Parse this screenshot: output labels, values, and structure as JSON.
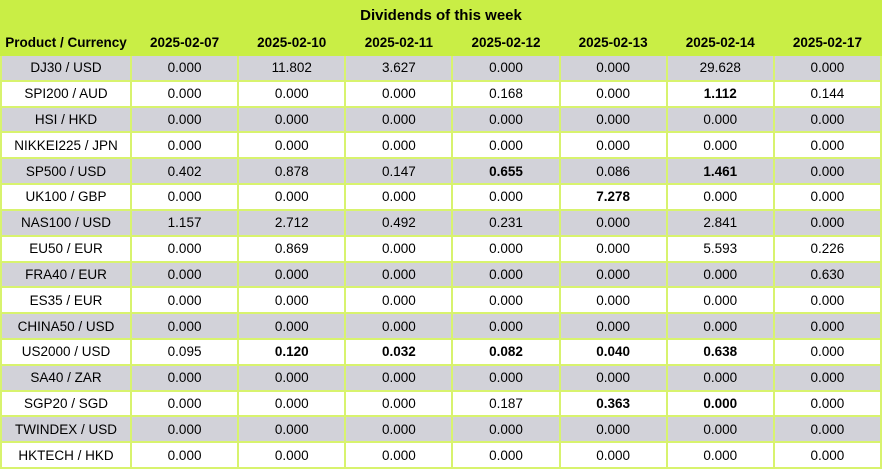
{
  "colors": {
    "header_bg": "#c9ee45",
    "border": "#d8f36e",
    "row_gray": "#d2d2d9",
    "row_white": "#ffffff",
    "text": "#000000"
  },
  "chart_data": {
    "type": "table",
    "title": "Dividends of this week",
    "columns": [
      "Product / Currency",
      "2025-02-07",
      "2025-02-10",
      "2025-02-11",
      "2025-02-12",
      "2025-02-13",
      "2025-02-14",
      "2025-02-17"
    ],
    "rows": [
      {
        "product": "DJ30 / USD",
        "values": [
          "0.000",
          "11.802",
          "3.627",
          "0.000",
          "0.000",
          "29.628",
          "0.000"
        ],
        "bold": [
          0,
          0,
          0,
          0,
          0,
          0,
          0
        ]
      },
      {
        "product": "SPI200 / AUD",
        "values": [
          "0.000",
          "0.000",
          "0.000",
          "0.168",
          "0.000",
          "1.112",
          "0.144"
        ],
        "bold": [
          0,
          0,
          0,
          0,
          0,
          1,
          0
        ]
      },
      {
        "product": "HSI / HKD",
        "values": [
          "0.000",
          "0.000",
          "0.000",
          "0.000",
          "0.000",
          "0.000",
          "0.000"
        ],
        "bold": [
          0,
          0,
          0,
          0,
          0,
          0,
          0
        ]
      },
      {
        "product": "NIKKEI225 / JPN",
        "values": [
          "0.000",
          "0.000",
          "0.000",
          "0.000",
          "0.000",
          "0.000",
          "0.000"
        ],
        "bold": [
          0,
          0,
          0,
          0,
          0,
          0,
          0
        ]
      },
      {
        "product": "SP500 / USD",
        "values": [
          "0.402",
          "0.878",
          "0.147",
          "0.655",
          "0.086",
          "1.461",
          "0.000"
        ],
        "bold": [
          0,
          0,
          0,
          1,
          0,
          1,
          0
        ]
      },
      {
        "product": "UK100 / GBP",
        "values": [
          "0.000",
          "0.000",
          "0.000",
          "0.000",
          "7.278",
          "0.000",
          "0.000"
        ],
        "bold": [
          0,
          0,
          0,
          0,
          1,
          0,
          0
        ]
      },
      {
        "product": "NAS100 / USD",
        "values": [
          "1.157",
          "2.712",
          "0.492",
          "0.231",
          "0.000",
          "2.841",
          "0.000"
        ],
        "bold": [
          0,
          0,
          0,
          0,
          0,
          0,
          0
        ]
      },
      {
        "product": "EU50 / EUR",
        "values": [
          "0.000",
          "0.869",
          "0.000",
          "0.000",
          "0.000",
          "5.593",
          "0.226"
        ],
        "bold": [
          0,
          0,
          0,
          0,
          0,
          0,
          0
        ]
      },
      {
        "product": "FRA40 / EUR",
        "values": [
          "0.000",
          "0.000",
          "0.000",
          "0.000",
          "0.000",
          "0.000",
          "0.630"
        ],
        "bold": [
          0,
          0,
          0,
          0,
          0,
          0,
          0
        ]
      },
      {
        "product": "ES35 / EUR",
        "values": [
          "0.000",
          "0.000",
          "0.000",
          "0.000",
          "0.000",
          "0.000",
          "0.000"
        ],
        "bold": [
          0,
          0,
          0,
          0,
          0,
          0,
          0
        ]
      },
      {
        "product": "CHINA50 / USD",
        "values": [
          "0.000",
          "0.000",
          "0.000",
          "0.000",
          "0.000",
          "0.000",
          "0.000"
        ],
        "bold": [
          0,
          0,
          0,
          0,
          0,
          0,
          0
        ]
      },
      {
        "product": "US2000 / USD",
        "values": [
          "0.095",
          "0.120",
          "0.032",
          "0.082",
          "0.040",
          "0.638",
          "0.000"
        ],
        "bold": [
          0,
          1,
          1,
          1,
          1,
          1,
          0
        ]
      },
      {
        "product": "SA40 / ZAR",
        "values": [
          "0.000",
          "0.000",
          "0.000",
          "0.000",
          "0.000",
          "0.000",
          "0.000"
        ],
        "bold": [
          0,
          0,
          0,
          0,
          0,
          0,
          0
        ]
      },
      {
        "product": "SGP20 / SGD",
        "values": [
          "0.000",
          "0.000",
          "0.000",
          "0.187",
          "0.363",
          "0.000",
          "0.000"
        ],
        "bold": [
          0,
          0,
          0,
          0,
          1,
          1,
          0
        ]
      },
      {
        "product": "TWINDEX / USD",
        "values": [
          "0.000",
          "0.000",
          "0.000",
          "0.000",
          "0.000",
          "0.000",
          "0.000"
        ],
        "bold": [
          0,
          0,
          0,
          0,
          0,
          0,
          0
        ]
      },
      {
        "product": "HKTECH / HKD",
        "values": [
          "0.000",
          "0.000",
          "0.000",
          "0.000",
          "0.000",
          "0.000",
          "0.000"
        ],
        "bold": [
          0,
          0,
          0,
          0,
          0,
          0,
          0
        ]
      }
    ]
  }
}
